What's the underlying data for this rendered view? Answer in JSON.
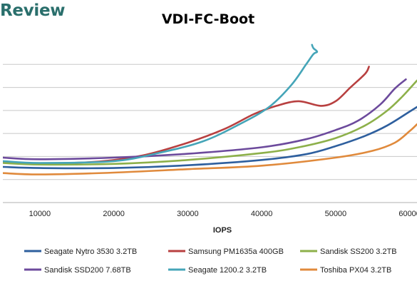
{
  "brand": "Review",
  "chart_data": {
    "type": "line",
    "title": "VDI-FC-Boot",
    "xlabel": "IOPS",
    "ylabel": "",
    "xlim": [
      5000,
      61000
    ],
    "x_ticks": [
      10000,
      20000,
      30000,
      40000,
      50000,
      60000
    ],
    "x_tick_labels": [
      "10000",
      "20000",
      "30000",
      "40000",
      "50000",
      "60000"
    ],
    "ylim": [
      0,
      7
    ],
    "y_gridlines": [
      1,
      2,
      3,
      4,
      5,
      6
    ],
    "grid": true,
    "legend_position": "bottom",
    "series": [
      {
        "name": "Seagate Nytro 3530 3.2TB",
        "color": "#2e5f9e",
        "points": [
          [
            5000,
            1.55
          ],
          [
            10000,
            1.5
          ],
          [
            20000,
            1.5
          ],
          [
            30000,
            1.62
          ],
          [
            40000,
            1.85
          ],
          [
            46000,
            2.1
          ],
          [
            50000,
            2.45
          ],
          [
            54000,
            2.9
          ],
          [
            57000,
            3.35
          ],
          [
            60000,
            3.95
          ],
          [
            61000,
            4.15
          ]
        ]
      },
      {
        "name": "Samsung PM1635a 400GB",
        "color": "#b84040",
        "points": [
          [
            5000,
            1.75
          ],
          [
            10000,
            1.7
          ],
          [
            18000,
            1.78
          ],
          [
            24000,
            2.05
          ],
          [
            30000,
            2.6
          ],
          [
            35000,
            3.2
          ],
          [
            39000,
            3.85
          ],
          [
            42000,
            4.2
          ],
          [
            45000,
            4.4
          ],
          [
            48000,
            4.2
          ],
          [
            50000,
            4.4
          ],
          [
            52000,
            5.0
          ],
          [
            54000,
            5.6
          ],
          [
            54500,
            5.9
          ]
        ]
      },
      {
        "name": "Sandisk SS200 3.2TB",
        "color": "#8db04a",
        "points": [
          [
            5000,
            1.72
          ],
          [
            10000,
            1.65
          ],
          [
            20000,
            1.68
          ],
          [
            30000,
            1.85
          ],
          [
            40000,
            2.15
          ],
          [
            45000,
            2.4
          ],
          [
            50000,
            2.8
          ],
          [
            54000,
            3.35
          ],
          [
            57000,
            4.0
          ],
          [
            59000,
            4.6
          ],
          [
            61000,
            5.3
          ]
        ]
      },
      {
        "name": "Sandisk SSD200 7.68TB",
        "color": "#6c4a9c",
        "points": [
          [
            5000,
            1.95
          ],
          [
            10000,
            1.88
          ],
          [
            20000,
            1.95
          ],
          [
            30000,
            2.12
          ],
          [
            40000,
            2.4
          ],
          [
            46000,
            2.75
          ],
          [
            50000,
            3.15
          ],
          [
            53000,
            3.55
          ],
          [
            56000,
            4.25
          ],
          [
            58000,
            4.95
          ],
          [
            59500,
            5.35
          ]
        ]
      },
      {
        "name": "Seagate 1200.2 3.2TB",
        "color": "#45a5b8",
        "points": [
          [
            5000,
            1.8
          ],
          [
            10000,
            1.72
          ],
          [
            20000,
            1.8
          ],
          [
            26000,
            2.15
          ],
          [
            32000,
            2.65
          ],
          [
            37000,
            3.4
          ],
          [
            41000,
            4.15
          ],
          [
            44000,
            5.1
          ],
          [
            46000,
            6.0
          ],
          [
            47000,
            6.45
          ],
          [
            47500,
            6.55
          ],
          [
            47000,
            6.7
          ],
          [
            46800,
            6.85
          ]
        ]
      },
      {
        "name": "Toshiba PX04 3.2TB",
        "color": "#e08a3c",
        "points": [
          [
            5000,
            1.28
          ],
          [
            10000,
            1.22
          ],
          [
            20000,
            1.3
          ],
          [
            30000,
            1.45
          ],
          [
            40000,
            1.6
          ],
          [
            50000,
            1.95
          ],
          [
            55000,
            2.25
          ],
          [
            58000,
            2.6
          ],
          [
            60000,
            3.1
          ],
          [
            61000,
            3.4
          ]
        ]
      }
    ]
  }
}
